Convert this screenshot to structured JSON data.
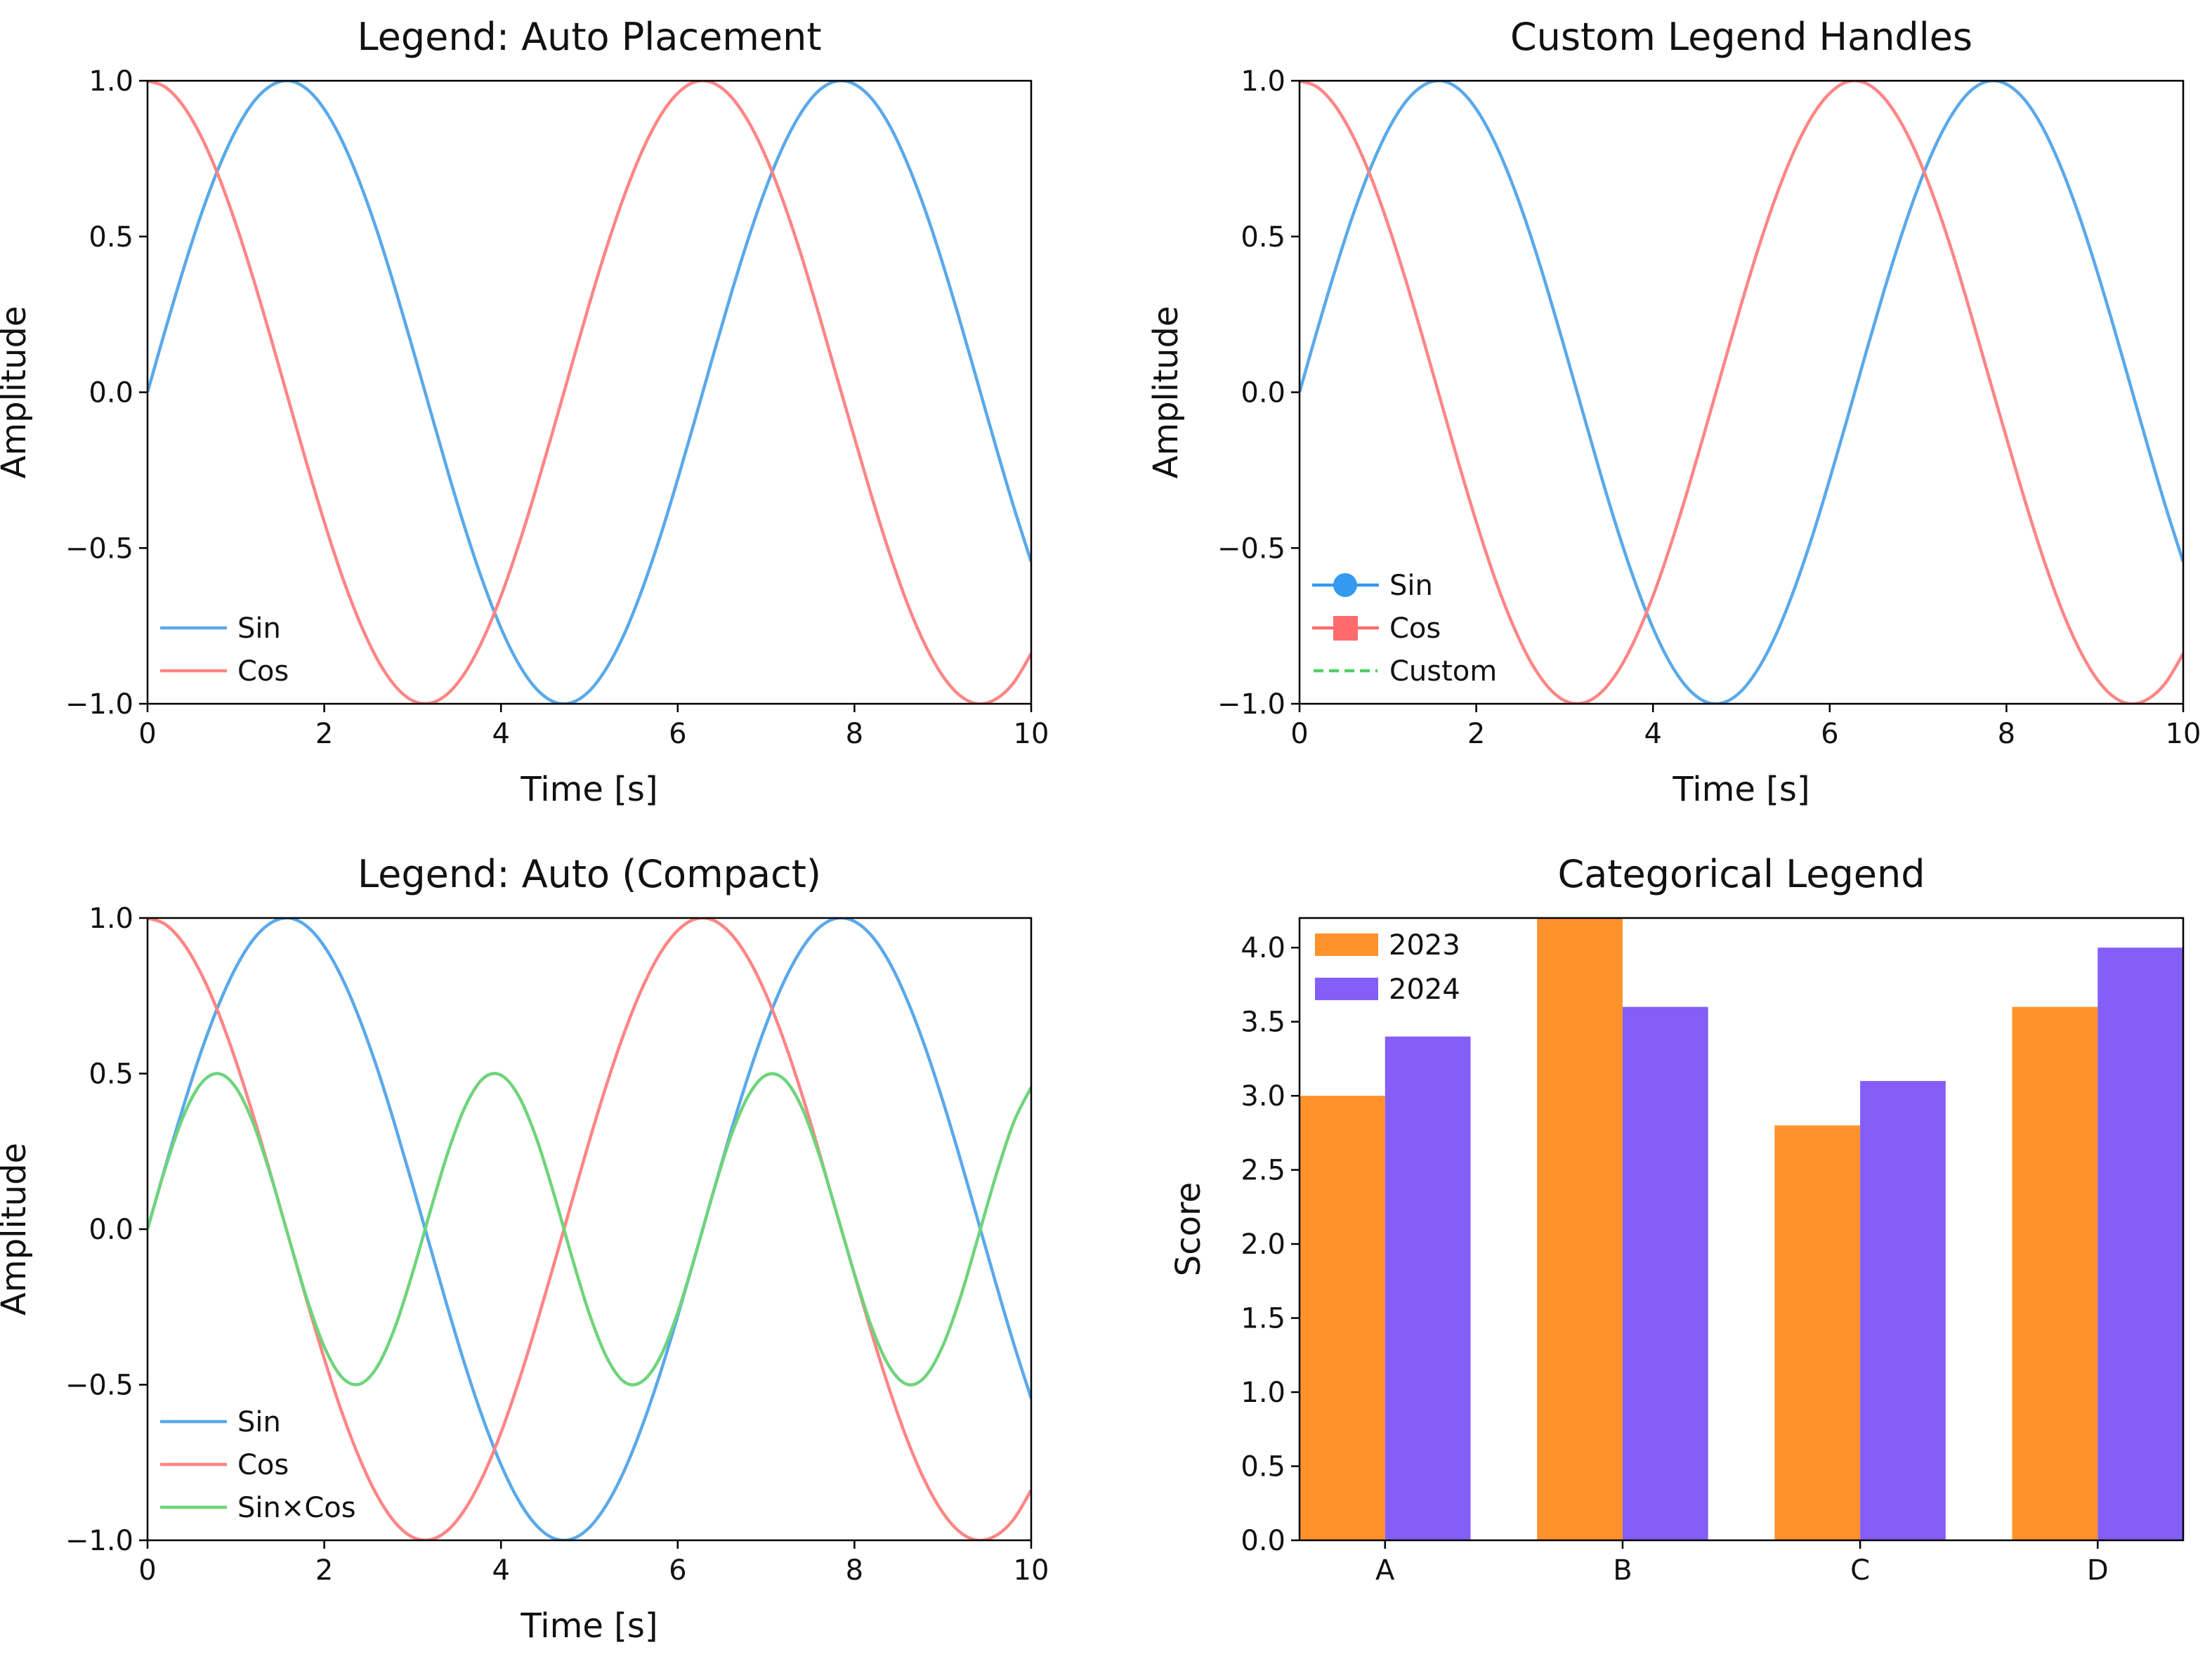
{
  "colors": {
    "sin_line": "#5aa9ea",
    "cos_line": "#ff8585",
    "sincos_line": "#6fd47c",
    "sin_handle": "#339af0",
    "cos_handle": "#ff6b6b",
    "custom_handle": "#51cf66",
    "bar_2023": "#ff922b",
    "bar_2024": "#845ef7"
  },
  "chart_data": [
    {
      "type": "line",
      "title": "Legend: Auto Placement",
      "xlabel": "Time [s]",
      "ylabel": "Amplitude",
      "xlim": [
        0,
        10
      ],
      "ylim": [
        -1,
        1
      ],
      "xticks": [
        "0",
        "2",
        "4",
        "6",
        "8",
        "10"
      ],
      "yticks": [
        "−1.0",
        "−0.5",
        "0.0",
        "0.5",
        "1.0"
      ],
      "legend_position": "lower-left",
      "x_start": 0,
      "x_step": 0.2,
      "series": [
        {
          "name": "Sin",
          "color_key": "sin_line",
          "ref": "sin"
        },
        {
          "name": "Cos",
          "color_key": "cos_line",
          "ref": "cos"
        }
      ]
    },
    {
      "type": "line",
      "title": "Custom Legend Handles",
      "xlabel": "Time [s]",
      "ylabel": "Amplitude",
      "xlim": [
        0,
        10
      ],
      "ylim": [
        -1,
        1
      ],
      "xticks": [
        "0",
        "2",
        "4",
        "6",
        "8",
        "10"
      ],
      "yticks": [
        "−1.0",
        "−0.5",
        "0.0",
        "0.5",
        "1.0"
      ],
      "legend_position": "lower-left",
      "series": [
        {
          "color_key": "sin_line",
          "ref": "sin"
        },
        {
          "color_key": "cos_line",
          "ref": "cos"
        }
      ],
      "legend": [
        {
          "name": "Sin",
          "handle": "line-circle",
          "color_key": "sin_handle"
        },
        {
          "name": "Cos",
          "handle": "line-square",
          "color_key": "cos_handle"
        },
        {
          "name": "Custom",
          "handle": "dashed-line",
          "color_key": "custom_handle"
        }
      ]
    },
    {
      "type": "line",
      "title": "Legend: Auto (Compact)",
      "xlabel": "Time [s]",
      "ylabel": "Amplitude",
      "xlim": [
        0,
        10
      ],
      "ylim": [
        -1,
        1
      ],
      "xticks": [
        "0",
        "2",
        "4",
        "6",
        "8",
        "10"
      ],
      "yticks": [
        "−1.0",
        "−0.5",
        "0.0",
        "0.5",
        "1.0"
      ],
      "legend_position": "lower-left",
      "series": [
        {
          "name": "Sin",
          "color_key": "sin_line",
          "ref": "sin"
        },
        {
          "name": "Cos",
          "color_key": "cos_line",
          "ref": "cos"
        },
        {
          "name": "Sin×Cos",
          "color_key": "sincos_line",
          "ref": "sincos"
        }
      ]
    },
    {
      "type": "bar",
      "title": "Categorical Legend",
      "xlabel": "",
      "ylabel": "Score",
      "categories": [
        "A",
        "B",
        "C",
        "D"
      ],
      "ylim": [
        0,
        4.2
      ],
      "yticks": [
        "0.0",
        "0.5",
        "1.0",
        "1.5",
        "2.0",
        "2.5",
        "3.0",
        "3.5",
        "4.0"
      ],
      "legend_position": "upper-left",
      "series": [
        {
          "name": "2023",
          "color_key": "bar_2023",
          "values": [
            3.0,
            4.2,
            2.8,
            3.6
          ]
        },
        {
          "name": "2024",
          "color_key": "bar_2024",
          "values": [
            3.4,
            3.6,
            3.1,
            4.0
          ]
        }
      ]
    }
  ],
  "curves": {
    "x_start": 0,
    "x_step": 0.2,
    "sin": [
      0,
      0.199,
      0.389,
      0.565,
      0.717,
      0.841,
      0.932,
      0.985,
      1.0,
      0.974,
      0.909,
      0.808,
      0.675,
      0.516,
      0.335,
      0.141,
      -0.058,
      -0.256,
      -0.443,
      -0.612,
      -0.757,
      -0.872,
      -0.952,
      -0.994,
      -0.996,
      -0.959,
      -0.883,
      -0.773,
      -0.631,
      -0.465,
      -0.279,
      -0.083,
      0.117,
      0.312,
      0.494,
      0.657,
      0.794,
      0.899,
      0.969,
      0.999,
      0.989,
      0.941,
      0.855,
      0.734,
      0.585,
      0.412,
      0.223,
      0.025,
      -0.174,
      -0.366,
      -0.544
    ],
    "cos": [
      1,
      0.98,
      0.921,
      0.825,
      0.697,
      0.54,
      0.362,
      0.17,
      -0.029,
      -0.227,
      -0.416,
      -0.589,
      -0.737,
      -0.857,
      -0.942,
      -0.99,
      -0.998,
      -0.967,
      -0.897,
      -0.791,
      -0.654,
      -0.49,
      -0.307,
      -0.112,
      0.087,
      0.284,
      0.469,
      0.635,
      0.776,
      0.886,
      0.96,
      0.997,
      0.993,
      0.95,
      0.869,
      0.754,
      0.608,
      0.438,
      0.248,
      0.05,
      -0.146,
      -0.339,
      -0.519,
      -0.679,
      -0.811,
      -0.911,
      -0.975,
      -1.0,
      -0.985,
      -0.933,
      -0.839
    ],
    "sincos": [
      0,
      0.195,
      0.359,
      0.466,
      0.5,
      0.455,
      0.338,
      0.167,
      -0.029,
      -0.221,
      -0.378,
      -0.476,
      -0.498,
      -0.442,
      -0.316,
      -0.14,
      0.058,
      0.247,
      0.397,
      0.485,
      0.495,
      0.428,
      0.293,
      0.112,
      -0.087,
      -0.272,
      -0.414,
      -0.492,
      -0.489,
      -0.412,
      -0.268,
      -0.083,
      0.116,
      0.297,
      0.429,
      0.495,
      0.483,
      0.394,
      0.24,
      0.05,
      -0.144,
      -0.319,
      -0.444,
      -0.499,
      -0.474,
      -0.375,
      -0.218,
      -0.025,
      0.171,
      0.342,
      0.456
    ]
  }
}
